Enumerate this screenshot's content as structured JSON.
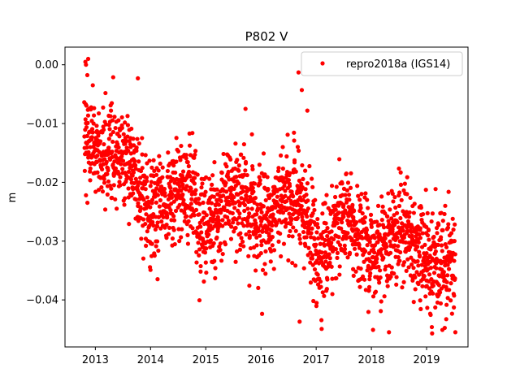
{
  "chart_data": {
    "type": "scatter",
    "title": "P802 V",
    "xlabel": "",
    "ylabel": "m",
    "xlim": [
      2012.45,
      2019.75
    ],
    "ylim": [
      -0.048,
      0.003
    ],
    "x_ticks": [
      2013,
      2014,
      2015,
      2016,
      2017,
      2018,
      2019
    ],
    "y_ticks": [
      0.0,
      -0.01,
      -0.02,
      -0.03,
      -0.04
    ],
    "y_tick_labels": [
      "0.00",
      "−0.01",
      "−0.02",
      "−0.03",
      "−0.04"
    ],
    "legend": {
      "placement": "upper right",
      "entries": [
        "repro2018a (IGS14)"
      ]
    },
    "marker_color": "#ff0000",
    "grid": false,
    "series": [
      {
        "name": "repro2018a (IGS14)",
        "x_range": [
          2012.8,
          2019.52
        ],
        "trend": {
          "x": [
            2012.8,
            2013.3,
            2014.0,
            2015.0,
            2016.0,
            2016.9,
            2017.0,
            2018.0,
            2019.0,
            2019.5
          ],
          "y": [
            -0.01,
            -0.016,
            -0.022,
            -0.025,
            -0.024,
            -0.026,
            -0.03,
            -0.029,
            -0.031,
            -0.036
          ]
        },
        "notable_points": [
          {
            "x": 2012.87,
            "y": 0.001
          },
          {
            "x": 2012.83,
            "y": 0.0
          },
          {
            "x": 2013.77,
            "y": -0.0023
          },
          {
            "x": 2015.72,
            "y": -0.0075
          },
          {
            "x": 2016.68,
            "y": -0.0013
          },
          {
            "x": 2016.74,
            "y": -0.0043
          },
          {
            "x": 2016.84,
            "y": -0.0078
          },
          {
            "x": 2016.7,
            "y": -0.0437
          },
          {
            "x": 2018.03,
            "y": -0.0451
          },
          {
            "x": 2019.1,
            "y": -0.0457
          },
          {
            "x": 2012.83,
            "y": -0.0222
          }
        ]
      }
    ]
  }
}
